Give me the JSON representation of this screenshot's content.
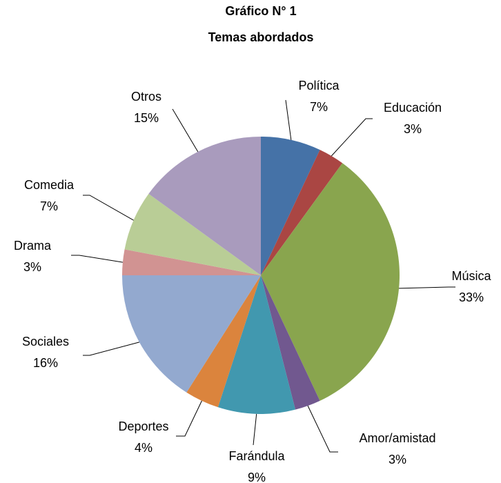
{
  "chart_data": {
    "type": "pie",
    "title": "Gráfico N° 1",
    "subtitle": "Temas abordados",
    "categories": [
      "Política",
      "Educación",
      "Música",
      "Amor/amistad",
      "Farándula",
      "Deportes",
      "Sociales",
      "Drama",
      "Comedia",
      "Otros"
    ],
    "values": [
      7,
      3,
      33,
      3,
      9,
      4,
      16,
      3,
      7,
      15
    ],
    "value_labels": [
      "7%",
      "3%",
      "33%",
      "3%",
      "9%",
      "4%",
      "16%",
      "3%",
      "7%",
      "15%"
    ],
    "colors": [
      "#4572a7",
      "#aa4643",
      "#89a54e",
      "#71588f",
      "#4198af",
      "#db843d",
      "#93a9cf",
      "#d19392",
      "#b9cd96",
      "#a99bbd"
    ]
  }
}
